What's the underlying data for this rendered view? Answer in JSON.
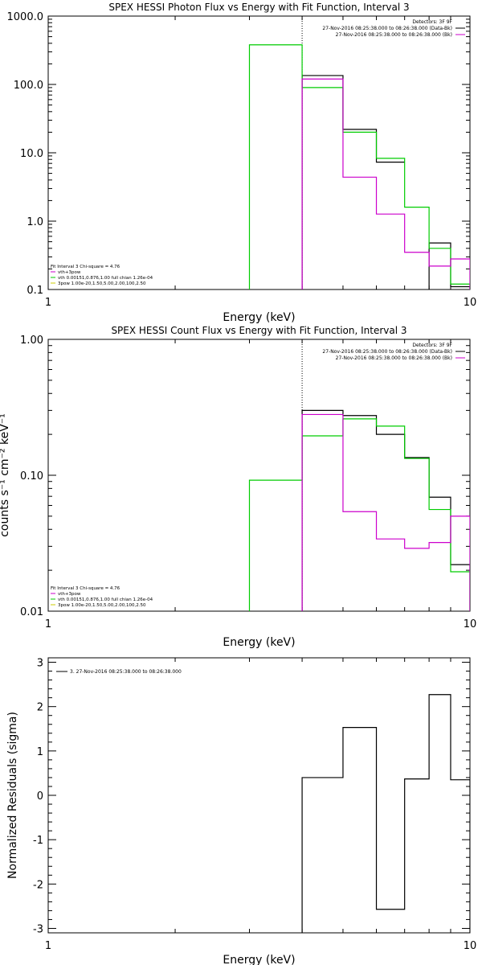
{
  "chart_data": [
    {
      "type": "line",
      "title": "SPEX HESSI Photon Flux vs Energy with Fit Function, Interval 3",
      "xlabel": "Energy (keV)",
      "ylabel": "",
      "xscale": "log",
      "yscale": "log",
      "xlim": [
        1,
        10
      ],
      "ylim": [
        0.1,
        1000
      ],
      "xticks": [
        {
          "value": 1,
          "label": "1"
        },
        {
          "value": 10,
          "label": "10"
        }
      ],
      "yticks": [
        {
          "value": 0.1,
          "label": "0.1"
        },
        {
          "value": 1,
          "label": "1.0"
        },
        {
          "value": 10,
          "label": "10.0"
        },
        {
          "value": 100,
          "label": "100.0"
        },
        {
          "value": 1000,
          "label": "1000.0"
        }
      ],
      "vline_x": 4,
      "legend_top": [
        {
          "text": "Detectors: 3F 9F",
          "color": "#000000"
        },
        {
          "text": "27-Nov-2016 08:25:38.000 to 08:26:38.000 (Data-Bk)",
          "color": "#000000"
        },
        {
          "text": "27-Nov-2016 08:25:38.000 to 08:26:38.000 (Bk)",
          "color": "#cc00cc"
        }
      ],
      "legend_bottom": [
        {
          "text": "Fit Interval 3   Chi-square = 4.76",
          "color": "#000000"
        },
        {
          "text": "vth+3pow",
          "color": "#cc00cc"
        },
        {
          "text": "vth 0.00151,0.876,1.00  full chian 1.26e-04",
          "color": "#00cc00"
        },
        {
          "text": "3pow 1.00e-20,1.50,5.00,2.00,100,2.50",
          "color": "#cccc00"
        }
      ],
      "edges": [
        3,
        4,
        5,
        6,
        7,
        8,
        9,
        10
      ],
      "series": [
        {
          "color": "#000000",
          "values": [
            null,
            135,
            22,
            7.3,
            null,
            0.48,
            0.11
          ]
        },
        {
          "color": "#00cc00",
          "values": [
            380,
            90,
            20,
            8.3,
            1.6,
            0.4,
            0.12
          ]
        },
        {
          "color": "#cc00cc",
          "values": [
            null,
            120,
            4.4,
            1.27,
            0.35,
            0.22,
            0.28
          ]
        }
      ]
    },
    {
      "type": "line",
      "title": "SPEX HESSI Count Flux vs Energy with Fit Function, Interval 3",
      "xlabel": "Energy (keV)",
      "ylabel": "counts s⁻¹ cm⁻² keV⁻¹",
      "xscale": "log",
      "yscale": "log",
      "xlim": [
        1,
        10
      ],
      "ylim": [
        0.01,
        1
      ],
      "xticks": [
        {
          "value": 1,
          "label": "1"
        },
        {
          "value": 10,
          "label": "10"
        }
      ],
      "yticks": [
        {
          "value": 0.01,
          "label": "0.01"
        },
        {
          "value": 0.1,
          "label": "0.10"
        },
        {
          "value": 1,
          "label": "1.00"
        }
      ],
      "vline_x": 4,
      "legend_top": [
        {
          "text": "Detectors: 3F 9F",
          "color": "#000000"
        },
        {
          "text": "27-Nov-2016 08:25:38.000 to 08:26:38.000 (Data-Bk)",
          "color": "#000000"
        },
        {
          "text": "27-Nov-2016 08:25:38.000 to 08:26:38.000 (Bk)",
          "color": "#cc00cc"
        }
      ],
      "legend_bottom": [
        {
          "text": "Fit Interval 3   Chi-square = 4.76",
          "color": "#000000"
        },
        {
          "text": "vth+3pow",
          "color": "#cc00cc"
        },
        {
          "text": "vth 0.00151,0.876,1.00  full chian 1.26e-04",
          "color": "#00cc00"
        },
        {
          "text": "3pow 1.00e-20,1.50,5.00,2.00,100,2.50",
          "color": "#cccc00"
        }
      ],
      "edges": [
        3,
        4,
        5,
        6,
        7,
        8,
        9,
        10
      ],
      "series": [
        {
          "color": "#000000",
          "values": [
            null,
            0.3,
            0.275,
            0.2,
            0.135,
            0.069,
            0.022
          ]
        },
        {
          "color": "#00cc00",
          "values": [
            0.092,
            0.195,
            0.26,
            0.23,
            0.133,
            0.056,
            0.0195
          ]
        },
        {
          "color": "#cc00cc",
          "values": [
            null,
            0.28,
            0.054,
            0.034,
            0.029,
            0.032,
            0.05
          ]
        }
      ]
    },
    {
      "type": "line",
      "title": "",
      "xlabel": "Energy (keV)",
      "ylabel": "Normalized Residuals (sigma)",
      "xscale": "log",
      "yscale": "linear",
      "xlim": [
        1,
        10
      ],
      "ylim": [
        -3.1,
        3.1
      ],
      "xticks": [
        {
          "value": 1,
          "label": "1"
        },
        {
          "value": 10,
          "label": "10"
        }
      ],
      "yticks": [
        {
          "value": -3,
          "label": "-3"
        },
        {
          "value": -2,
          "label": "-2"
        },
        {
          "value": -1,
          "label": "-1"
        },
        {
          "value": 0,
          "label": "0"
        },
        {
          "value": 1,
          "label": "1"
        },
        {
          "value": 2,
          "label": "2"
        },
        {
          "value": 3,
          "label": "3"
        }
      ],
      "legend_top": [
        {
          "text": "3. 27-Nov-2016 08:25:38.000 to 08:26:38.000",
          "color": "#000000"
        }
      ],
      "edges": [
        4,
        5,
        6,
        7,
        8,
        9,
        10
      ],
      "series": [
        {
          "color": "#000000",
          "values": [
            0.4,
            1.53,
            -2.57,
            0.37,
            2.27,
            0.35
          ]
        }
      ]
    }
  ]
}
